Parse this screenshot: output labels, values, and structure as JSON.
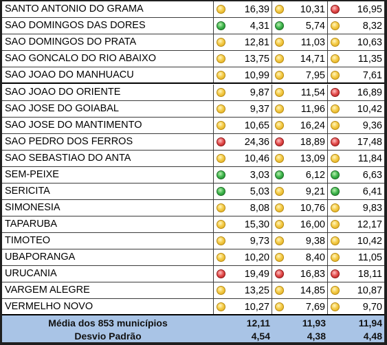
{
  "rows": [
    {
      "name": "SANTO ANTONIO DO GRAMA",
      "v1": "16,39",
      "s1": "y",
      "v2": "10,31",
      "s2": "y",
      "v3": "16,95",
      "s3": "r"
    },
    {
      "name": "SAO DOMINGOS DAS DORES",
      "v1": "4,31",
      "s1": "g",
      "v2": "5,74",
      "s2": "g",
      "v3": "8,32",
      "s3": "y"
    },
    {
      "name": "SAO DOMINGOS DO PRATA",
      "v1": "12,81",
      "s1": "y",
      "v2": "11,03",
      "s2": "y",
      "v3": "10,63",
      "s3": "y"
    },
    {
      "name": "SAO GONCALO DO RIO ABAIXO",
      "v1": "13,75",
      "s1": "y",
      "v2": "14,71",
      "s2": "y",
      "v3": "11,35",
      "s3": "y"
    },
    {
      "name": "SAO JOAO DO MANHUACU",
      "v1": "10,99",
      "s1": "y",
      "v2": "7,95",
      "s2": "y",
      "v3": "7,61",
      "s3": "y"
    },
    {
      "name": "SAO JOAO DO ORIENTE",
      "v1": "9,87",
      "s1": "y",
      "v2": "11,54",
      "s2": "y",
      "v3": "16,89",
      "s3": "r"
    },
    {
      "name": "SAO JOSE DO GOIABAL",
      "v1": "9,37",
      "s1": "y",
      "v2": "11,96",
      "s2": "y",
      "v3": "10,42",
      "s3": "y"
    },
    {
      "name": "SAO JOSE DO MANTIMENTO",
      "v1": "10,65",
      "s1": "y",
      "v2": "16,24",
      "s2": "y",
      "v3": "9,36",
      "s3": "y"
    },
    {
      "name": "SAO PEDRO DOS FERROS",
      "v1": "24,36",
      "s1": "r",
      "v2": "18,89",
      "s2": "r",
      "v3": "17,48",
      "s3": "r"
    },
    {
      "name": "SAO SEBASTIAO DO ANTA",
      "v1": "10,46",
      "s1": "y",
      "v2": "13,09",
      "s2": "y",
      "v3": "11,84",
      "s3": "y"
    },
    {
      "name": "SEM-PEIXE",
      "v1": "3,03",
      "s1": "g",
      "v2": "6,12",
      "s2": "g",
      "v3": "6,63",
      "s3": "g"
    },
    {
      "name": "SERICITA",
      "v1": "5,03",
      "s1": "g",
      "v2": "9,21",
      "s2": "y",
      "v3": "6,41",
      "s3": "g"
    },
    {
      "name": "SIMONESIA",
      "v1": "8,08",
      "s1": "y",
      "v2": "10,76",
      "s2": "y",
      "v3": "9,83",
      "s3": "y"
    },
    {
      "name": "TAPARUBA",
      "v1": "15,30",
      "s1": "y",
      "v2": "16,00",
      "s2": "y",
      "v3": "12,17",
      "s3": "y"
    },
    {
      "name": "TIMOTEO",
      "v1": "9,73",
      "s1": "y",
      "v2": "9,38",
      "s2": "y",
      "v3": "10,42",
      "s3": "y"
    },
    {
      "name": "UBAPORANGA",
      "v1": "10,20",
      "s1": "y",
      "v2": "8,40",
      "s2": "y",
      "v3": "11,05",
      "s3": "y"
    },
    {
      "name": "URUCANIA",
      "v1": "19,49",
      "s1": "r",
      "v2": "16,83",
      "s2": "r",
      "v3": "18,11",
      "s3": "r"
    },
    {
      "name": "VARGEM ALEGRE",
      "v1": "13,25",
      "s1": "y",
      "v2": "14,85",
      "s2": "y",
      "v3": "10,87",
      "s3": "y"
    },
    {
      "name": "VERMELHO NOVO",
      "v1": "10,27",
      "s1": "y",
      "v2": "7,69",
      "s2": "y",
      "v3": "9,70",
      "s3": "y"
    }
  ],
  "status_colors": {
    "y": "#f5cc4a",
    "g": "#3cb44a",
    "r": "#e24a4a"
  },
  "footer": {
    "mean_label": "Média dos 853 municípios",
    "mean": [
      "12,11",
      "11,93",
      "11,94"
    ],
    "sd_label": "Desvio Padrão",
    "sd": [
      "4,54",
      "4,38",
      "4,48"
    ]
  }
}
